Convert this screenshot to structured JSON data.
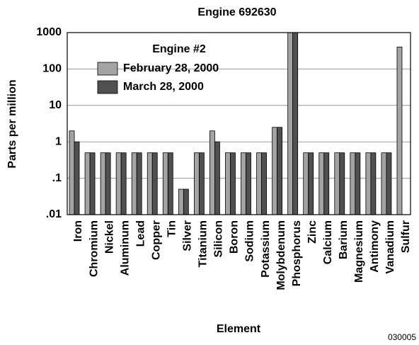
{
  "chart_data": {
    "type": "bar",
    "title": "Engine 692630",
    "x_label": "Element",
    "y_label": "Parts per million",
    "legend_title": "Engine #2",
    "annotation": "030005",
    "categories": [
      "Iron",
      "Chromium",
      "Nickel",
      "Aluminum",
      "Lead",
      "Copper",
      "Tin",
      "Silver",
      "Titanium",
      "Silicon",
      "Boron",
      "Sodium",
      "Potassium",
      "Molybdenum",
      "Phosphorus",
      "Zinc",
      "Calcium",
      "Barium",
      "Magnesium",
      "Antimony",
      "Vanadium",
      "Sulfur"
    ],
    "series": [
      {
        "name": "February 28, 2000",
        "color": "#a3a3a3",
        "values": [
          2,
          0.5,
          0.5,
          0.5,
          0.5,
          0.5,
          0.5,
          0.05,
          0.5,
          2,
          0.5,
          0.5,
          0.5,
          2.5,
          1000,
          0.5,
          0.5,
          0.5,
          0.5,
          0.5,
          0.5,
          400
        ]
      },
      {
        "name": "March 28, 2000",
        "color": "#505050",
        "values": [
          1,
          0.5,
          0.5,
          0.5,
          0.5,
          0.5,
          0.5,
          0.05,
          0.5,
          1,
          0.5,
          0.5,
          0.5,
          2.5,
          1000,
          0.5,
          0.5,
          0.5,
          0.5,
          0.5,
          0.5,
          null
        ]
      }
    ],
    "ylim": [
      0.01,
      1000
    ],
    "log_y": true,
    "yticks": [
      {
        "value": 0.01,
        "label": ".01"
      },
      {
        "value": 0.1,
        "label": ".1"
      },
      1,
      10,
      100,
      1000
    ],
    "grid": true
  }
}
